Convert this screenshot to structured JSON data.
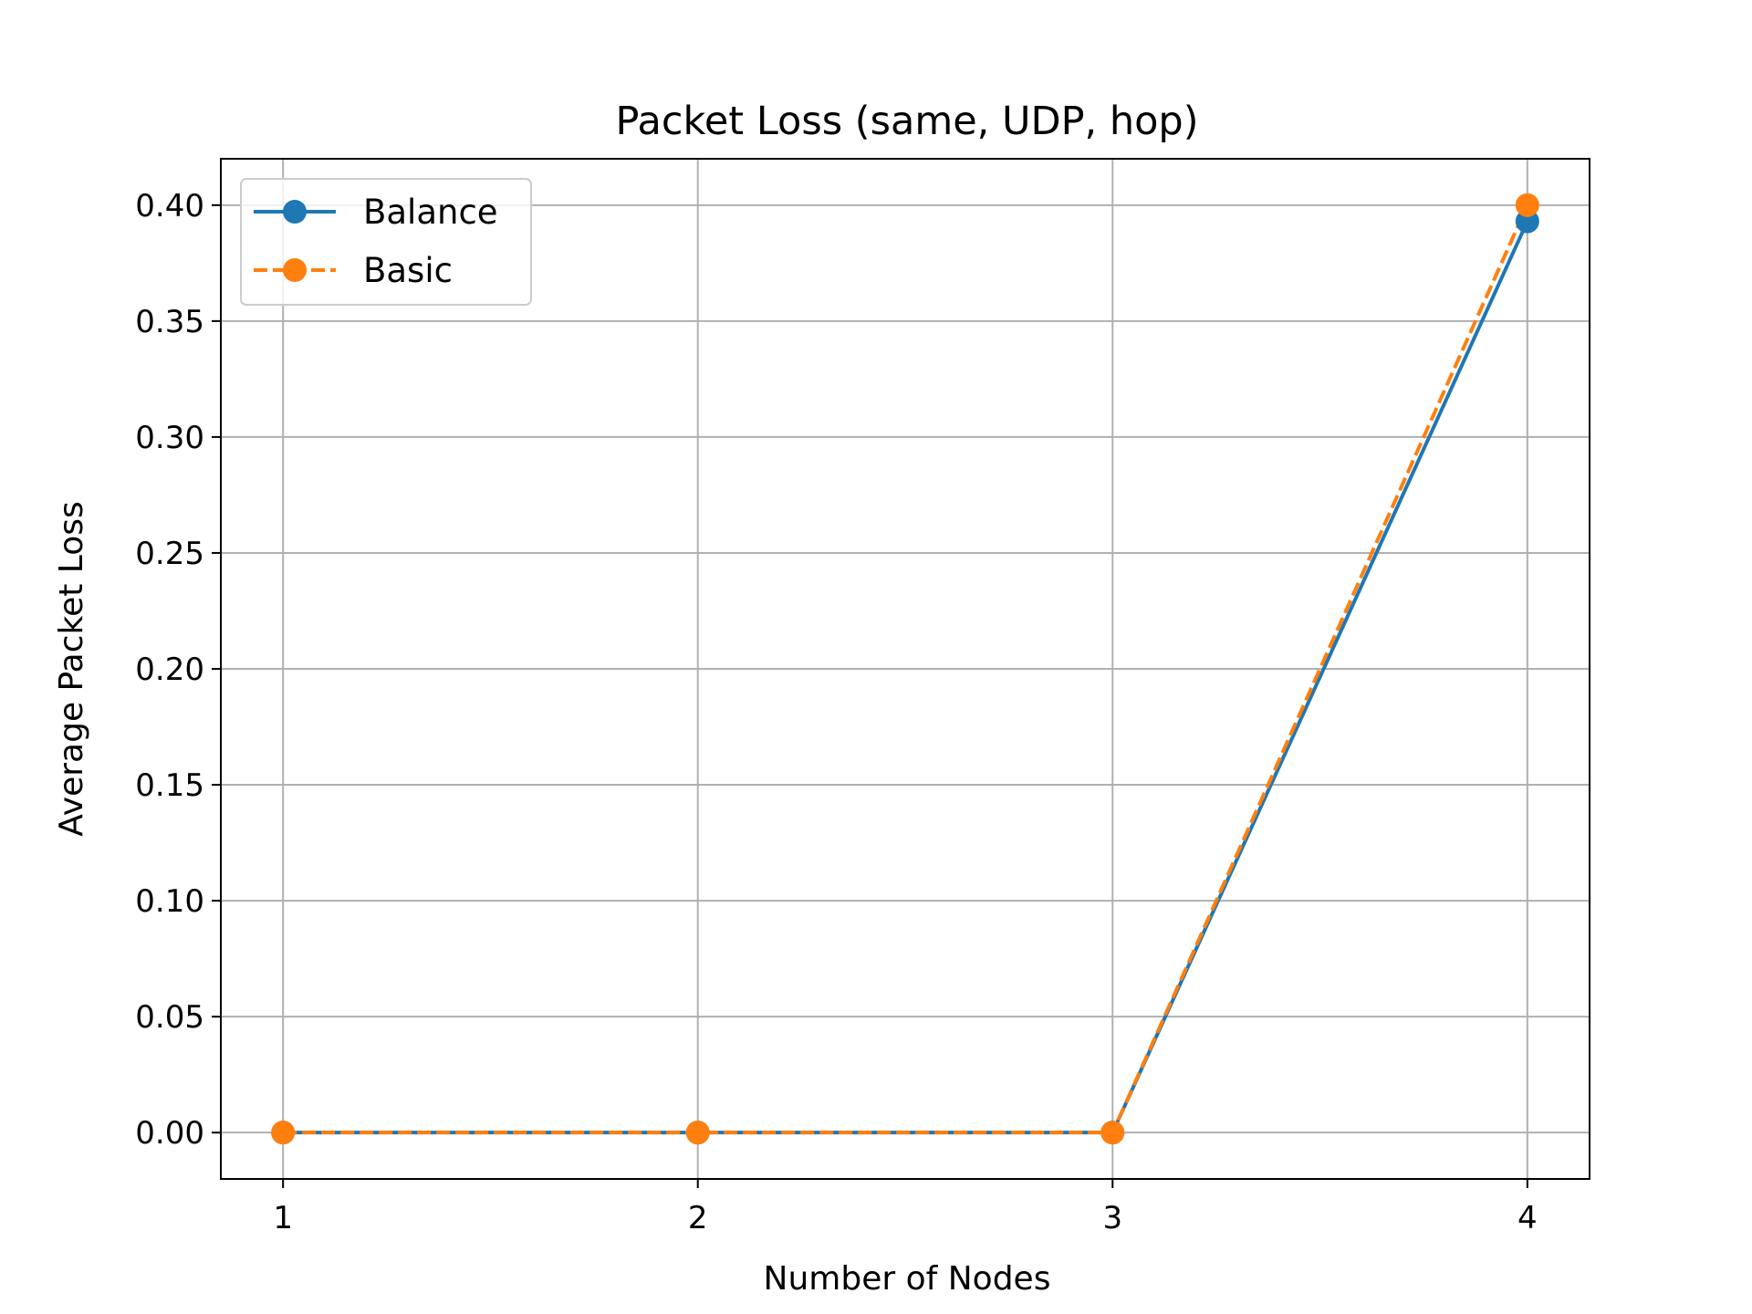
{
  "chart_data": {
    "type": "line",
    "title": "Packet Loss (same, UDP, hop)",
    "xlabel": "Number of Nodes",
    "ylabel": "Average Packet Loss",
    "x": [
      1,
      2,
      3,
      4
    ],
    "x_tick_labels": [
      "1",
      "2",
      "3",
      "4"
    ],
    "xlim": [
      0.85,
      4.15
    ],
    "ylim": [
      -0.02,
      0.42
    ],
    "y_ticks": [
      0.0,
      0.05,
      0.1,
      0.15,
      0.2,
      0.25,
      0.3,
      0.35,
      0.4
    ],
    "y_tick_labels": [
      "0.00",
      "0.05",
      "0.10",
      "0.15",
      "0.20",
      "0.25",
      "0.30",
      "0.35",
      "0.40"
    ],
    "grid": true,
    "legend_position": "top-left",
    "series": [
      {
        "name": "Balance",
        "values": [
          0.0,
          0.0,
          0.0,
          0.393
        ],
        "color": "#1f77b4",
        "line_style": "solid",
        "marker": "circle"
      },
      {
        "name": "Basic",
        "values": [
          0.0,
          0.0,
          0.0,
          0.4
        ],
        "color": "#ff7f0e",
        "line_style": "dashed",
        "marker": "circle"
      }
    ]
  }
}
